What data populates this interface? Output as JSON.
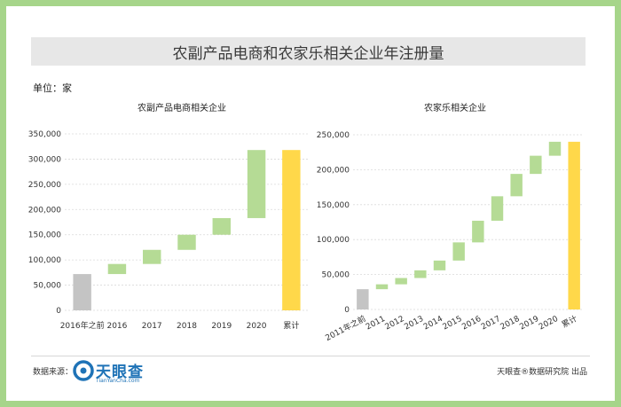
{
  "title": "农副产品电商和农家乐相关企业年注册量",
  "unit_label": "单位：家",
  "footer": {
    "source_label": "数据来源：",
    "logo_text": "天眼查",
    "logo_sub": "TianYanCha.com",
    "credit": "天眼查®数据研究院 出品"
  },
  "colors": {
    "frame": "#a6d58a",
    "gray": "#c4c4c4",
    "green": "#b5db95",
    "yellow": "#ffd84a",
    "logo": "#1f73b7"
  },
  "chart_data": [
    {
      "type": "bar",
      "subtype": "waterfall",
      "title": "农副产品电商相关企业",
      "ylim": [
        0,
        350000
      ],
      "yticks": [
        "0",
        "50,000",
        "100,000",
        "150,000",
        "200,000",
        "250,000",
        "300,000",
        "350,000"
      ],
      "categories": [
        "2016年之前",
        "2016",
        "2017",
        "2018",
        "2019",
        "2020",
        "累计"
      ],
      "values": [
        72000,
        20000,
        28000,
        30000,
        33000,
        135000,
        318000
      ],
      "bar_kinds": [
        "base",
        "increment",
        "increment",
        "increment",
        "increment",
        "increment",
        "total"
      ]
    },
    {
      "type": "bar",
      "subtype": "waterfall",
      "title": "农家乐相关企业",
      "ylim": [
        0,
        250000
      ],
      "yticks": [
        "0",
        "50,000",
        "100,000",
        "150,000",
        "200,000",
        "250,000"
      ],
      "categories": [
        "2011年之前",
        "2011",
        "2012",
        "2013",
        "2014",
        "2015",
        "2016",
        "2017",
        "2018",
        "2019",
        "2020",
        "累计"
      ],
      "values": [
        29000,
        7000,
        9000,
        11000,
        14000,
        26000,
        31000,
        35000,
        32000,
        26000,
        20000,
        240000
      ],
      "bar_kinds": [
        "base",
        "increment",
        "increment",
        "increment",
        "increment",
        "increment",
        "increment",
        "increment",
        "increment",
        "increment",
        "increment",
        "total"
      ]
    }
  ]
}
